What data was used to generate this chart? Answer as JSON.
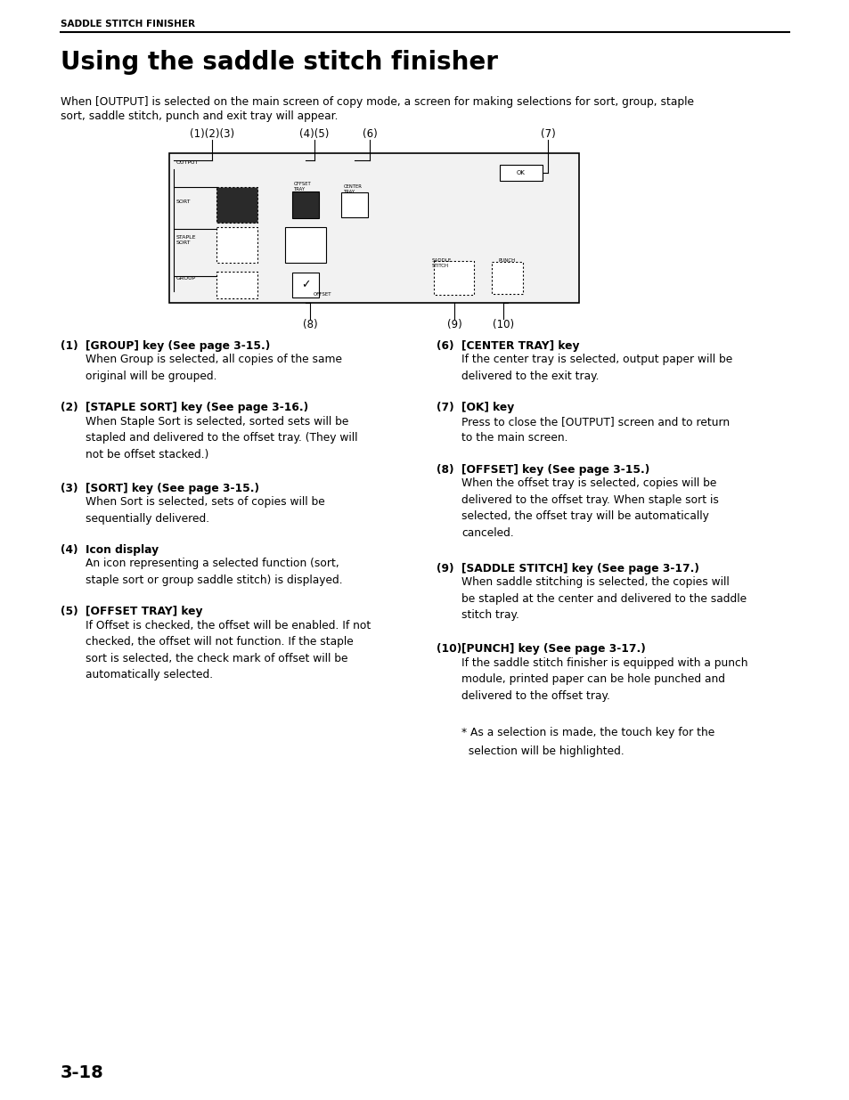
{
  "header_text": "SADDLE STITCH FINISHER",
  "title": "Using the saddle stitch finisher",
  "intro_line1": "When [OUTPUT] is selected on the main screen of copy mode, a screen for making selections for sort, group, staple",
  "intro_line2": "sort, saddle stitch, punch and exit tray will appear.",
  "page_number": "3-18",
  "bg_color": "#ffffff",
  "items_left": [
    {
      "num": "(1)",
      "heading": "[GROUP] key (See page 3-15.)",
      "body": "When Group is selected, all copies of the same\noriginal will be grouped."
    },
    {
      "num": "(2)",
      "heading": "[STAPLE SORT] key (See page 3-16.)",
      "body": "When Staple Sort is selected, sorted sets will be\nstapled and delivered to the offset tray. (They will\nnot be offset stacked.)"
    },
    {
      "num": "(3)",
      "heading": "[SORT] key (See page 3-15.)",
      "body": "When Sort is selected, sets of copies will be\nsequentially delivered."
    },
    {
      "num": "(4)",
      "heading": "Icon display",
      "body": "An icon representing a selected function (sort,\nstaple sort or group saddle stitch) is displayed."
    },
    {
      "num": "(5)",
      "heading": "[OFFSET TRAY] key",
      "body": "If Offset is checked, the offset will be enabled. If not\nchecked, the offset will not function. If the staple\nsort is selected, the check mark of offset will be\nautomatically selected."
    }
  ],
  "items_right": [
    {
      "num": "(6)",
      "heading": "[CENTER TRAY] key",
      "body": "If the center tray is selected, output paper will be\ndelivered to the exit tray."
    },
    {
      "num": "(7)",
      "heading": "[OK] key",
      "body": "Press to close the [OUTPUT] screen and to return\nto the main screen."
    },
    {
      "num": "(8)",
      "heading": "[OFFSET] key (See page 3-15.)",
      "body": "When the offset tray is selected, copies will be\ndelivered to the offset tray. When staple sort is\nselected, the offset tray will be automatically\ncanceled."
    },
    {
      "num": "(9)",
      "heading": "[SADDLE STITCH] key (See page 3-17.)",
      "body": "When saddle stitching is selected, the copies will\nbe stapled at the center and delivered to the saddle\nstitch tray."
    },
    {
      "num": "(10)",
      "heading": "[PUNCH] key (See page 3-17.)",
      "body": "If the saddle stitch finisher is equipped with a punch\nmodule, printed paper can be hole punched and\ndelivered to the offset tray."
    }
  ],
  "footnote_line1": "* As a selection is made, the touch key for the",
  "footnote_line2": "  selection will be highlighted."
}
